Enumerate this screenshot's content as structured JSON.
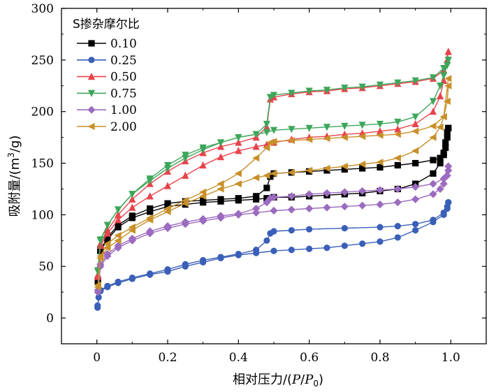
{
  "chart_data": {
    "type": "line",
    "xlabel_main": "相对压力/(",
    "xlabel_p": "P",
    "xlabel_slash": "/",
    "xlabel_p0": "P",
    "xlabel_sub": "0",
    "xlabel_close": ")",
    "ylabel_main": "吸附量/(m",
    "ylabel_sup": "3",
    "ylabel_tail": "/g)",
    "xlim": [
      -0.1,
      1.1
    ],
    "ylim": [
      -25,
      300
    ],
    "x_ticks": [
      "0",
      "0.2",
      "0.4",
      "0.6",
      "0.8",
      "1.0"
    ],
    "y_ticks": [
      "0",
      "50",
      "100",
      "150",
      "200",
      "250",
      "300"
    ],
    "legend": {
      "title": "S掺杂摩尔比",
      "placement": "top-left"
    },
    "series": [
      {
        "name": "0.10",
        "color": "#000000",
        "marker": "square",
        "adsorption": {
          "x": [
            0.003,
            0.01,
            0.03,
            0.06,
            0.1,
            0.15,
            0.2,
            0.25,
            0.3,
            0.35,
            0.4,
            0.45,
            0.48,
            0.5,
            0.55,
            0.6,
            0.65,
            0.7,
            0.75,
            0.8,
            0.85,
            0.9,
            0.95,
            0.97,
            0.98,
            0.985,
            0.99,
            0.993
          ],
          "y": [
            35,
            65,
            76,
            88,
            97,
            103,
            108,
            110,
            112,
            113,
            114,
            115,
            116,
            117,
            117,
            118,
            119,
            120,
            121,
            123,
            125,
            130,
            140,
            150,
            160,
            170,
            180,
            184
          ]
        },
        "desorption": {
          "x": [
            0.993,
            0.99,
            0.985,
            0.98,
            0.97,
            0.95,
            0.9,
            0.85,
            0.8,
            0.75,
            0.7,
            0.65,
            0.6,
            0.55,
            0.5,
            0.49,
            0.48,
            0.45,
            0.4,
            0.35,
            0.3,
            0.25,
            0.2,
            0.15,
            0.1,
            0.06,
            0.03,
            0.01,
            0.003
          ],
          "y": [
            184,
            175,
            165,
            158,
            155,
            153,
            150,
            148,
            146,
            145,
            144,
            143,
            142,
            141,
            140,
            137,
            126,
            118,
            116,
            115,
            114,
            113,
            111,
            106,
            99,
            90,
            78,
            66,
            36
          ]
        }
      },
      {
        "name": "0.25",
        "color": "#3A5FB8",
        "marker": "circle",
        "adsorption": {
          "x": [
            0.002,
            0.005,
            0.01,
            0.03,
            0.06,
            0.1,
            0.15,
            0.2,
            0.25,
            0.3,
            0.35,
            0.4,
            0.45,
            0.5,
            0.55,
            0.6,
            0.65,
            0.7,
            0.75,
            0.8,
            0.85,
            0.9,
            0.95,
            0.98,
            0.99,
            0.993
          ],
          "y": [
            10,
            20,
            26,
            30,
            34,
            38,
            42,
            45,
            50,
            54,
            58,
            61,
            63,
            65,
            66,
            67,
            68,
            70,
            72,
            74,
            78,
            85,
            93,
            100,
            106,
            112
          ]
        },
        "desorption": {
          "x": [
            0.993,
            0.99,
            0.98,
            0.95,
            0.9,
            0.85,
            0.8,
            0.7,
            0.6,
            0.55,
            0.5,
            0.49,
            0.48,
            0.45,
            0.4,
            0.35,
            0.3,
            0.25,
            0.2,
            0.15,
            0.1,
            0.06,
            0.03,
            0.01,
            0.002
          ],
          "y": [
            112,
            108,
            102,
            95,
            91,
            89,
            88,
            87,
            86,
            85,
            84,
            82,
            75,
            66,
            62,
            59,
            56,
            52,
            47,
            43,
            39,
            35,
            31,
            27,
            12
          ]
        }
      },
      {
        "name": "0.50",
        "color": "#E8434B",
        "marker": "triangle-up",
        "adsorption": {
          "x": [
            0.003,
            0.01,
            0.03,
            0.06,
            0.1,
            0.15,
            0.2,
            0.25,
            0.3,
            0.35,
            0.4,
            0.45,
            0.48,
            0.5,
            0.55,
            0.6,
            0.65,
            0.7,
            0.75,
            0.8,
            0.85,
            0.9,
            0.95,
            0.97,
            0.98,
            0.99,
            0.993
          ],
          "y": [
            40,
            70,
            82,
            95,
            107,
            118,
            128,
            138,
            148,
            156,
            162,
            166,
            168,
            170,
            173,
            175,
            176,
            178,
            179,
            181,
            183,
            188,
            200,
            215,
            230,
            250,
            258
          ]
        },
        "desorption": {
          "x": [
            0.993,
            0.98,
            0.95,
            0.9,
            0.85,
            0.8,
            0.75,
            0.7,
            0.65,
            0.6,
            0.55,
            0.5,
            0.49,
            0.48,
            0.45,
            0.4,
            0.35,
            0.3,
            0.25,
            0.2,
            0.15,
            0.1,
            0.06,
            0.03,
            0.01,
            0.003
          ],
          "y": [
            258,
            240,
            232,
            229,
            227,
            225,
            223,
            222,
            220,
            219,
            217,
            214,
            212,
            185,
            175,
            170,
            166,
            160,
            152,
            142,
            130,
            115,
            100,
            85,
            72,
            42
          ]
        }
      },
      {
        "name": "0.75",
        "color": "#3EA65A",
        "marker": "triangle-down",
        "adsorption": {
          "x": [
            0.003,
            0.01,
            0.03,
            0.06,
            0.1,
            0.15,
            0.2,
            0.25,
            0.3,
            0.35,
            0.4,
            0.45,
            0.48,
            0.5,
            0.55,
            0.6,
            0.65,
            0.7,
            0.75,
            0.8,
            0.85,
            0.9,
            0.95,
            0.97,
            0.98,
            0.99,
            0.993
          ],
          "y": [
            45,
            75,
            90,
            105,
            120,
            133,
            145,
            155,
            163,
            170,
            175,
            178,
            180,
            182,
            183,
            184,
            185,
            186,
            187,
            188,
            190,
            195,
            210,
            225,
            235,
            245,
            250
          ]
        },
        "desorption": {
          "x": [
            0.993,
            0.98,
            0.95,
            0.9,
            0.85,
            0.8,
            0.75,
            0.7,
            0.65,
            0.6,
            0.55,
            0.5,
            0.49,
            0.48,
            0.45,
            0.4,
            0.35,
            0.3,
            0.25,
            0.2,
            0.15,
            0.1,
            0.06,
            0.03,
            0.01,
            0.003
          ],
          "y": [
            250,
            242,
            233,
            230,
            228,
            226,
            224,
            223,
            221,
            220,
            218,
            216,
            214,
            188,
            178,
            175,
            170,
            165,
            158,
            148,
            135,
            120,
            105,
            90,
            76,
            46
          ]
        }
      },
      {
        "name": "1.00",
        "color": "#9B6BBF",
        "marker": "diamond",
        "adsorption": {
          "x": [
            0.003,
            0.01,
            0.03,
            0.06,
            0.1,
            0.15,
            0.2,
            0.25,
            0.3,
            0.35,
            0.4,
            0.45,
            0.5,
            0.55,
            0.6,
            0.65,
            0.7,
            0.75,
            0.8,
            0.85,
            0.9,
            0.95,
            0.97,
            0.98,
            0.99,
            0.993
          ],
          "y": [
            25,
            50,
            60,
            68,
            75,
            82,
            87,
            91,
            94,
            97,
            100,
            102,
            104,
            105,
            106,
            107,
            108,
            109,
            110,
            112,
            115,
            120,
            125,
            130,
            138,
            143
          ]
        },
        "desorption": {
          "x": [
            0.993,
            0.98,
            0.95,
            0.9,
            0.85,
            0.8,
            0.75,
            0.7,
            0.65,
            0.6,
            0.55,
            0.5,
            0.49,
            0.48,
            0.45,
            0.4,
            0.35,
            0.3,
            0.25,
            0.2,
            0.15,
            0.1,
            0.06,
            0.03,
            0.01,
            0.003
          ],
          "y": [
            147,
            135,
            130,
            127,
            125,
            124,
            123,
            122,
            121,
            120,
            118,
            117,
            116,
            112,
            106,
            101,
            99,
            96,
            93,
            89,
            84,
            77,
            70,
            62,
            52,
            27
          ]
        }
      },
      {
        "name": "2.00",
        "color": "#C8902A",
        "marker": "triangle-left",
        "adsorption": {
          "x": [
            0.003,
            0.01,
            0.03,
            0.06,
            0.1,
            0.15,
            0.2,
            0.25,
            0.3,
            0.35,
            0.4,
            0.45,
            0.48,
            0.5,
            0.55,
            0.6,
            0.65,
            0.7,
            0.75,
            0.8,
            0.85,
            0.9,
            0.95,
            0.97,
            0.98,
            0.99,
            0.993
          ],
          "y": [
            30,
            58,
            68,
            75,
            85,
            95,
            103,
            111,
            118,
            125,
            130,
            136,
            138,
            140,
            141,
            143,
            145,
            147,
            149,
            151,
            155,
            162,
            175,
            185,
            195,
            210,
            225
          ]
        },
        "desorption": {
          "x": [
            0.993,
            0.98,
            0.95,
            0.9,
            0.85,
            0.8,
            0.75,
            0.7,
            0.65,
            0.6,
            0.55,
            0.5,
            0.49,
            0.48,
            0.45,
            0.4,
            0.35,
            0.3,
            0.25,
            0.2,
            0.15,
            0.1,
            0.06,
            0.03,
            0.01,
            0.003
          ],
          "y": [
            232,
            195,
            186,
            181,
            178,
            177,
            176,
            175,
            174,
            173,
            172,
            171,
            170,
            165,
            155,
            140,
            130,
            122,
            114,
            106,
            97,
            88,
            80,
            72,
            60,
            32
          ]
        }
      }
    ]
  }
}
